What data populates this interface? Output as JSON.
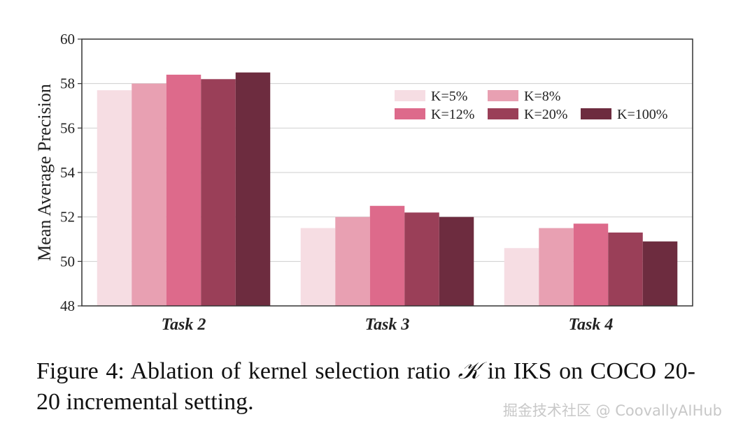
{
  "chart_data": {
    "type": "bar",
    "ylabel": "Mean Average Precision",
    "xlabel": "",
    "ylim": [
      48,
      60
    ],
    "yticks": [
      48,
      50,
      52,
      54,
      56,
      58,
      60
    ],
    "grid": true,
    "legend_position": "top-right",
    "categories": [
      "Task 2",
      "Task 3",
      "Task 4"
    ],
    "series": [
      {
        "name": "K=5%",
        "color": "#f6dde3",
        "values": [
          57.7,
          51.5,
          50.6
        ]
      },
      {
        "name": "K=8%",
        "color": "#e8a0b2",
        "values": [
          58.0,
          52.0,
          51.5
        ]
      },
      {
        "name": "K=12%",
        "color": "#dd6a8b",
        "values": [
          58.4,
          52.5,
          51.7
        ]
      },
      {
        "name": "K=20%",
        "color": "#9a3f58",
        "values": [
          58.2,
          52.2,
          51.3
        ]
      },
      {
        "name": "K=100%",
        "color": "#6d2c3f",
        "values": [
          58.5,
          52.0,
          50.9
        ]
      }
    ]
  },
  "caption": {
    "prefix": "Figure 4: Ablation of kernel selection ratio ",
    "symbol": "𝒦",
    "suffix": " in IKS on COCO 20-20 incremental setting."
  },
  "watermark": "掘金技术社区 @ CoovallyAIHub"
}
